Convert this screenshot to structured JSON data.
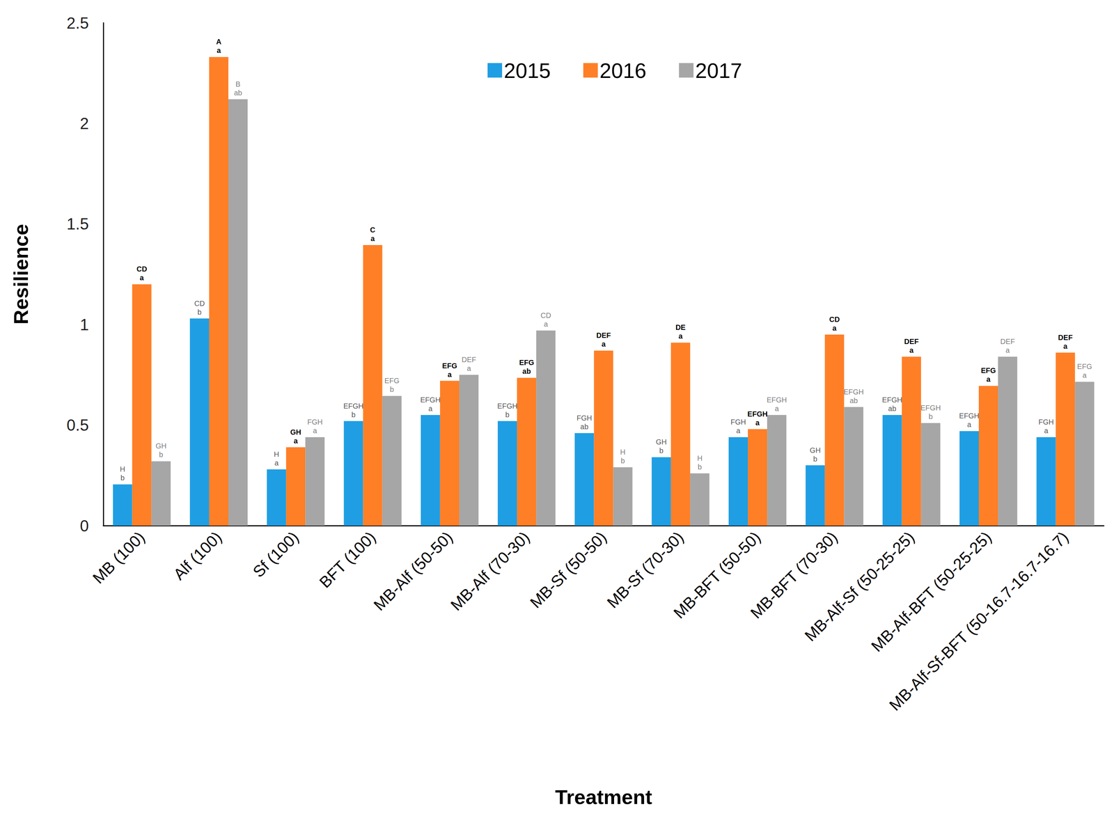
{
  "chart_data": {
    "type": "bar",
    "x_label": "Treatment",
    "y_label": "Resilience",
    "categories": [
      "MB (100)",
      "Alf (100)",
      "Sf (100)",
      "BFT (100)",
      "MB-Alf (50-50)",
      "MB-Alf (70-30)",
      "MB-Sf (50-50)",
      "MB-Sf (70-30)",
      "MB-BFT (50-50)",
      "MB-BFT (70-30)",
      "MB-Alf-Sf (50-25-25)",
      "MB-Alf-BFT (50-25-25)",
      "MB-Alf-Sf-BFT (50-16.7-16.7-16.7)"
    ],
    "series": [
      {
        "name": "2015",
        "color": "#1f9ee3",
        "values": [
          0.205,
          1.03,
          0.28,
          0.52,
          0.55,
          0.52,
          0.46,
          0.34,
          0.44,
          0.3,
          0.55,
          0.47,
          0.44
        ],
        "annotations": [
          [
            "H",
            "b"
          ],
          [
            "CD",
            "b"
          ],
          [
            "H",
            "a"
          ],
          [
            "EFGH",
            "b"
          ],
          [
            "EFGH",
            "a"
          ],
          [
            "EFGH",
            "b"
          ],
          [
            "FGH",
            "ab"
          ],
          [
            "GH",
            "b"
          ],
          [
            "FGH",
            "a"
          ],
          [
            "GH",
            "b"
          ],
          [
            "EFGH",
            "ab"
          ],
          [
            "EFGH",
            "a"
          ],
          [
            "FGH",
            "a"
          ]
        ]
      },
      {
        "name": "2016",
        "color": "#ff7f27",
        "values": [
          1.2,
          2.33,
          0.39,
          1.395,
          0.72,
          0.735,
          0.87,
          0.91,
          0.48,
          0.95,
          0.84,
          0.695,
          0.86
        ],
        "annotations": [
          [
            "CD",
            "a"
          ],
          [
            "A",
            "a"
          ],
          [
            "GH",
            "a"
          ],
          [
            "C",
            "a"
          ],
          [
            "EFG",
            "a"
          ],
          [
            "EFG",
            "ab"
          ],
          [
            "DEF",
            "a"
          ],
          [
            "DE",
            "a"
          ],
          [
            "EFGH",
            "a"
          ],
          [
            "CD",
            "a"
          ],
          [
            "DEF",
            "a"
          ],
          [
            "EFG",
            "a"
          ],
          [
            "DEF",
            "a"
          ]
        ]
      },
      {
        "name": "2017",
        "color": "#a6a6a6",
        "values": [
          0.32,
          2.12,
          0.44,
          0.645,
          0.75,
          0.97,
          0.29,
          0.26,
          0.55,
          0.59,
          0.51,
          0.84,
          0.715
        ],
        "annotations": [
          [
            "GH",
            "b"
          ],
          [
            "B",
            "ab"
          ],
          [
            "FGH",
            "a"
          ],
          [
            "EFG",
            "b"
          ],
          [
            "DEF",
            "a"
          ],
          [
            "CD",
            "a"
          ],
          [
            "H",
            "b"
          ],
          [
            "H",
            "b"
          ],
          [
            "EFGH",
            "a"
          ],
          [
            "EFGH",
            "ab"
          ],
          [
            "EFGH",
            "b"
          ],
          [
            "DEF",
            "a"
          ],
          [
            "EFG",
            "a"
          ]
        ]
      }
    ],
    "ylim": [
      0,
      2.5
    ],
    "yticks": [
      0,
      0.5,
      1,
      1.5,
      2,
      2.5
    ],
    "grid": false,
    "legend": "top"
  }
}
